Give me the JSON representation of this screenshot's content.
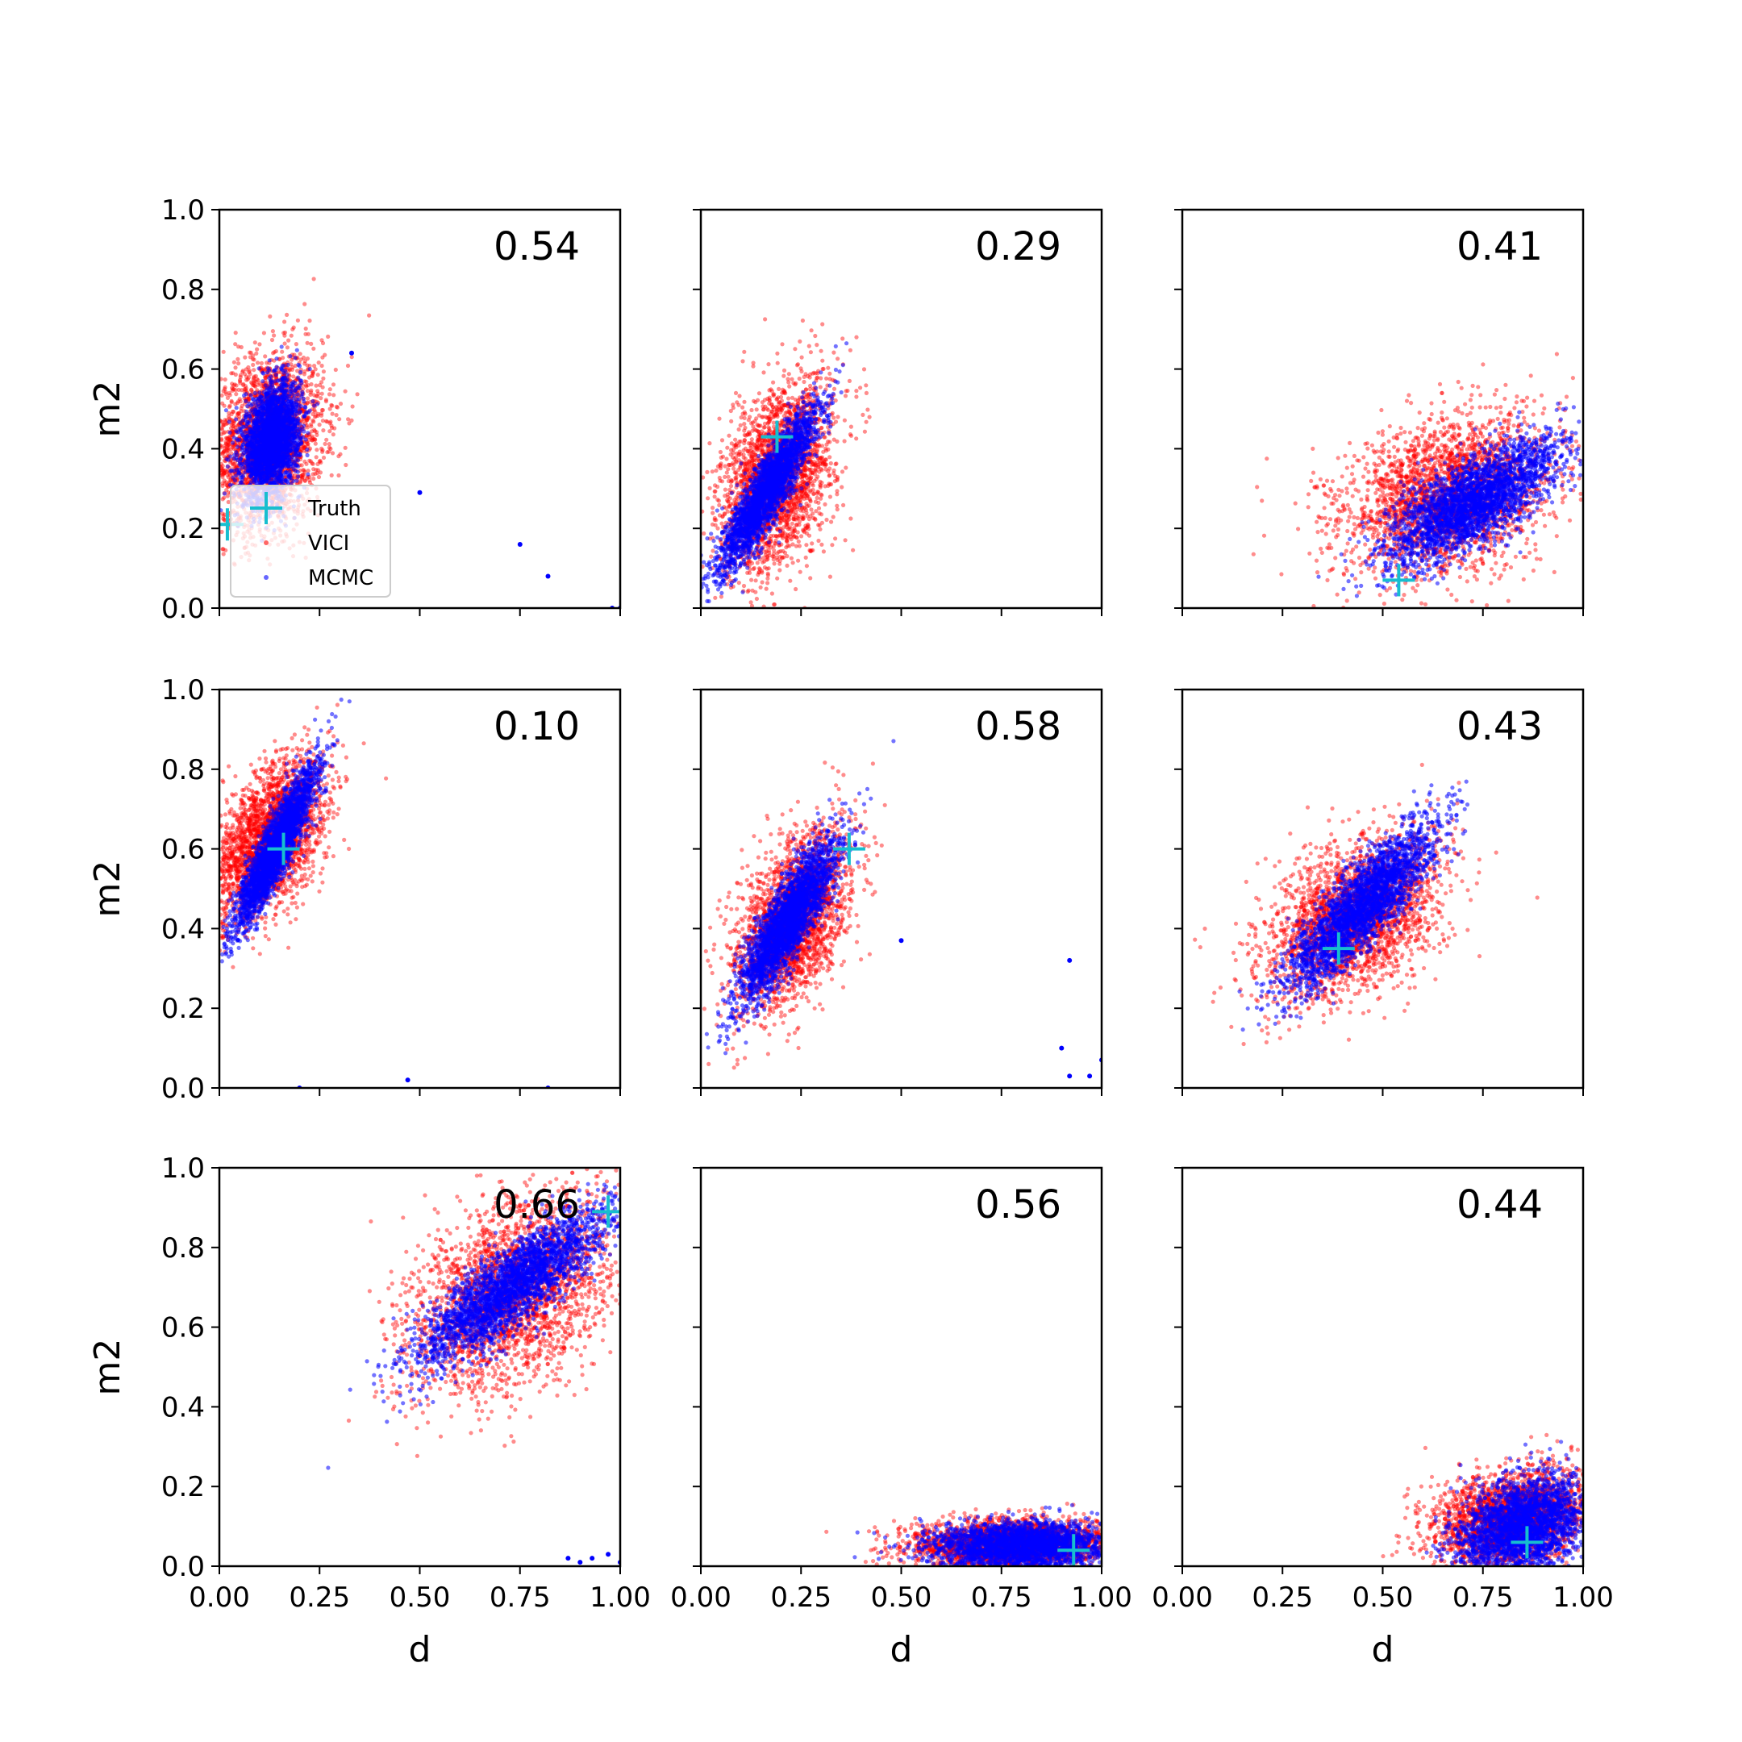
{
  "chart_data": {
    "type": "scatter",
    "layout": "3x3 grid of subplots",
    "xlabel": "d",
    "ylabel": "m2",
    "xlim": [
      0,
      1
    ],
    "ylim": [
      0,
      1
    ],
    "x_ticks": [
      "0.00",
      "0.25",
      "0.50",
      "0.75",
      "1.00"
    ],
    "y_ticks": [
      "0.0",
      "0.2",
      "0.4",
      "0.6",
      "0.8",
      "1.0"
    ],
    "colors": {
      "VICI": "#ff0000",
      "MCMC": "#0000ff",
      "Truth": "#17becf"
    },
    "legend": {
      "placement": "lower-left of first subplot",
      "entries": [
        {
          "label": "Truth",
          "marker": "plus",
          "color": "#17becf"
        },
        {
          "label": "VICI",
          "marker": "dot",
          "color": "#ff0000"
        },
        {
          "label": "MCMC",
          "marker": "dot",
          "color": "#0000ff"
        }
      ]
    },
    "panels": [
      {
        "score": "0.54",
        "truth": [
          0.02,
          0.21
        ],
        "vici": {
          "center": [
            0.12,
            0.42
          ],
          "spread": [
            0.07,
            0.11
          ],
          "corr": 0.2
        },
        "mcmc": {
          "center": [
            0.13,
            0.42
          ],
          "spread": [
            0.035,
            0.07
          ],
          "corr": 0.3
        },
        "mcmc_outliers": [
          [
            0.5,
            0.29
          ],
          [
            0.75,
            0.16
          ],
          [
            0.82,
            0.08
          ],
          [
            0.98,
            0.0
          ],
          [
            1.0,
            0.0
          ],
          [
            0.33,
            0.64
          ]
        ]
      },
      {
        "score": "0.29",
        "truth": [
          0.19,
          0.43
        ],
        "vici": {
          "center": [
            0.19,
            0.33
          ],
          "spread": [
            0.07,
            0.12
          ],
          "corr": 0.4
        },
        "mcmc": {
          "center": [
            0.17,
            0.3
          ],
          "spread": [
            0.06,
            0.1
          ],
          "corr": 0.9
        }
      },
      {
        "score": "0.41",
        "truth": [
          0.54,
          0.07
        ],
        "vici": {
          "center": [
            0.66,
            0.28
          ],
          "spread": [
            0.13,
            0.1
          ],
          "corr": 0.3
        },
        "mcmc": {
          "center": [
            0.73,
            0.27
          ],
          "spread": [
            0.11,
            0.08
          ],
          "corr": 0.75
        }
      },
      {
        "score": "0.10",
        "truth": [
          0.16,
          0.6
        ],
        "vici": {
          "center": [
            0.12,
            0.62
          ],
          "spread": [
            0.07,
            0.1
          ],
          "corr": 0.5
        },
        "mcmc": {
          "center": [
            0.14,
            0.6
          ],
          "spread": [
            0.05,
            0.1
          ],
          "corr": 0.9
        },
        "mcmc_outliers": [
          [
            0.2,
            0.0
          ],
          [
            0.47,
            0.02
          ],
          [
            0.82,
            0.0
          ]
        ]
      },
      {
        "score": "0.58",
        "truth": [
          0.37,
          0.6
        ],
        "vici": {
          "center": [
            0.23,
            0.42
          ],
          "spread": [
            0.07,
            0.11
          ],
          "corr": 0.5
        },
        "mcmc": {
          "center": [
            0.22,
            0.42
          ],
          "spread": [
            0.06,
            0.1
          ],
          "corr": 0.85
        },
        "mcmc_outliers": [
          [
            0.92,
            0.32
          ],
          [
            0.9,
            0.1
          ],
          [
            0.92,
            0.03
          ],
          [
            0.97,
            0.03
          ],
          [
            1.0,
            0.07
          ],
          [
            0.5,
            0.37
          ]
        ]
      },
      {
        "score": "0.43",
        "truth": [
          0.39,
          0.35
        ],
        "vici": {
          "center": [
            0.43,
            0.43
          ],
          "spread": [
            0.11,
            0.1
          ],
          "corr": 0.4
        },
        "mcmc": {
          "center": [
            0.45,
            0.46
          ],
          "spread": [
            0.09,
            0.1
          ],
          "corr": 0.85
        }
      },
      {
        "score": "0.66",
        "truth": [
          0.97,
          0.89
        ],
        "vici": {
          "center": [
            0.73,
            0.68
          ],
          "spread": [
            0.13,
            0.12
          ],
          "corr": 0.4
        },
        "mcmc": {
          "center": [
            0.73,
            0.7
          ],
          "spread": [
            0.12,
            0.1
          ],
          "corr": 0.85
        },
        "mcmc_outliers": [
          [
            0.87,
            0.02
          ],
          [
            0.93,
            0.02
          ],
          [
            0.97,
            0.03
          ],
          [
            1.0,
            0.01
          ],
          [
            0.9,
            0.01
          ]
        ]
      },
      {
        "score": "0.56",
        "truth": [
          0.93,
          0.04
        ],
        "vici": {
          "center": [
            0.77,
            0.055
          ],
          "spread": [
            0.12,
            0.03
          ],
          "corr": 0.1
        },
        "mcmc": {
          "center": [
            0.8,
            0.05
          ],
          "spread": [
            0.11,
            0.03
          ],
          "corr": 0.1
        }
      },
      {
        "score": "0.44",
        "truth": [
          0.86,
          0.06
        ],
        "vici": {
          "center": [
            0.82,
            0.12
          ],
          "spread": [
            0.1,
            0.06
          ],
          "corr": 0.3
        },
        "mcmc": {
          "center": [
            0.85,
            0.1
          ],
          "spread": [
            0.08,
            0.06
          ],
          "corr": 0.3
        }
      }
    ]
  }
}
